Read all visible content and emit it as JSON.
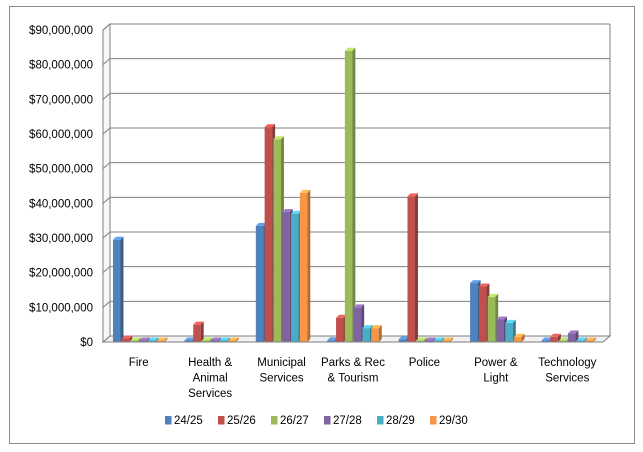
{
  "chart_data": {
    "type": "bar",
    "title": "",
    "xlabel": "",
    "ylabel": "",
    "ylim": [
      0,
      90000000
    ],
    "y_ticks": [
      "$0",
      "$10,000,000",
      "$20,000,000",
      "$30,000,000",
      "$40,000,000",
      "$50,000,000",
      "$60,000,000",
      "$70,000,000",
      "$80,000,000",
      "$90,000,000"
    ],
    "grid": true,
    "legend_position": "bottom",
    "categories": [
      [
        "Fire"
      ],
      [
        "Health &",
        "Animal",
        "Services"
      ],
      [
        "Municipal",
        "Services"
      ],
      [
        "Parks & Rec",
        "& Tourism"
      ],
      [
        "Police"
      ],
      [
        "Power &",
        "Light"
      ],
      [
        "Technology",
        "Services"
      ]
    ],
    "series": [
      {
        "name": "24/25",
        "color": "#4f81bd",
        "values": [
          29500000,
          0,
          33500000,
          500000,
          800000,
          17000000,
          0
        ]
      },
      {
        "name": "25/26",
        "color": "#c0504d",
        "values": [
          1000000,
          5000000,
          62000000,
          7000000,
          42000000,
          16000000,
          1500000
        ]
      },
      {
        "name": "26/27",
        "color": "#9bbb59",
        "values": [
          0,
          0,
          58500000,
          84000000,
          0,
          13000000,
          0
        ]
      },
      {
        "name": "27/28",
        "color": "#8064a2",
        "values": [
          0,
          0,
          37500000,
          10000000,
          0,
          6500000,
          2500000
        ]
      },
      {
        "name": "28/29",
        "color": "#4bacc6",
        "values": [
          0,
          0,
          37000000,
          4000000,
          0,
          5500000,
          0
        ]
      },
      {
        "name": "29/30",
        "color": "#f79646",
        "values": [
          0,
          0,
          43000000,
          4000000,
          0,
          1500000,
          0
        ]
      }
    ]
  }
}
